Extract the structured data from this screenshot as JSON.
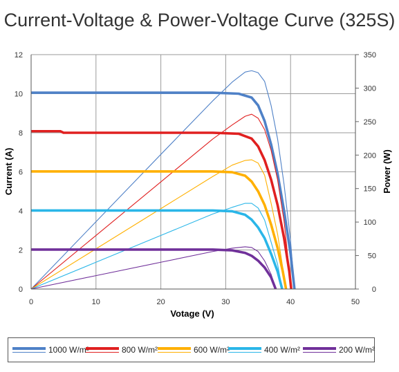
{
  "title": "Current-Voltage & Power-Voltage Curve (325S)",
  "chart_data": {
    "type": "line",
    "title": "Current-Voltage & Power-Voltage Curve (325S)",
    "xlabel": "Votage (V)",
    "ylabel_left": "Current (A)",
    "ylabel_right": "Power (W)",
    "xlim": [
      0,
      50
    ],
    "ylim_left": [
      0,
      12
    ],
    "ylim_right": [
      0,
      350
    ],
    "x_ticks": [
      "0",
      "10",
      "20",
      "30",
      "40",
      "50"
    ],
    "y_left_ticks": [
      "0",
      "2",
      "4",
      "6",
      "8",
      "10",
      "12"
    ],
    "y_right_ticks": [
      "0",
      "50",
      "100",
      "150",
      "200",
      "250",
      "300",
      "350"
    ],
    "grid": true,
    "legend_position": "bottom",
    "series": [
      {
        "name": "1000 W/m²",
        "color": "#4f81c7",
        "current_points": [
          [
            0,
            10.05
          ],
          [
            28,
            10.05
          ],
          [
            32,
            10.0
          ],
          [
            34,
            9.8
          ],
          [
            35,
            9.4
          ],
          [
            36,
            8.6
          ],
          [
            37,
            7.4
          ],
          [
            38,
            5.9
          ],
          [
            39,
            4.0
          ],
          [
            40,
            1.8
          ],
          [
            40.5,
            0.3
          ],
          [
            40.6,
            0
          ]
        ],
        "power_points": [
          [
            0,
            0
          ],
          [
            10,
            100.5
          ],
          [
            20,
            201
          ],
          [
            28,
            281
          ],
          [
            31,
            309
          ],
          [
            33,
            324
          ],
          [
            34,
            326
          ],
          [
            35,
            323
          ],
          [
            36,
            310
          ],
          [
            37,
            274
          ],
          [
            38,
            224
          ],
          [
            39,
            156
          ],
          [
            40,
            72
          ],
          [
            40.6,
            0
          ]
        ]
      },
      {
        "name": "800 W/m²",
        "color": "#e02020",
        "current_points": [
          [
            0,
            8.08
          ],
          [
            4.5,
            8.08
          ],
          [
            5,
            8.0
          ],
          [
            28,
            8.0
          ],
          [
            32,
            7.95
          ],
          [
            34,
            7.7
          ],
          [
            35,
            7.3
          ],
          [
            36,
            6.6
          ],
          [
            37,
            5.6
          ],
          [
            38,
            4.3
          ],
          [
            39,
            2.6
          ],
          [
            39.8,
            0.9
          ],
          [
            40.1,
            0
          ]
        ],
        "power_points": [
          [
            0,
            0
          ],
          [
            10,
            80
          ],
          [
            20,
            160
          ],
          [
            28,
            224
          ],
          [
            31,
            245
          ],
          [
            33,
            258
          ],
          [
            34,
            261
          ],
          [
            35,
            255
          ],
          [
            36,
            238
          ],
          [
            37,
            207
          ],
          [
            38,
            163
          ],
          [
            39,
            101
          ],
          [
            40.1,
            0
          ]
        ]
      },
      {
        "name": "600 W/m²",
        "color": "#ffb000",
        "current_points": [
          [
            0,
            6.02
          ],
          [
            28,
            6.02
          ],
          [
            31,
            5.98
          ],
          [
            33,
            5.8
          ],
          [
            34,
            5.5
          ],
          [
            35,
            5.0
          ],
          [
            36,
            4.3
          ],
          [
            37,
            3.3
          ],
          [
            38,
            2.1
          ],
          [
            38.8,
            0.9
          ],
          [
            39.3,
            0
          ]
        ],
        "power_points": [
          [
            0,
            0
          ],
          [
            10,
            60
          ],
          [
            20,
            120
          ],
          [
            28,
            168
          ],
          [
            31,
            185
          ],
          [
            33,
            192
          ],
          [
            34,
            193
          ],
          [
            35,
            188
          ],
          [
            36,
            170
          ],
          [
            37,
            128
          ],
          [
            38,
            82
          ],
          [
            39.3,
            0
          ]
        ]
      },
      {
        "name": "400 W/m²",
        "color": "#2ab6e8",
        "current_points": [
          [
            0,
            4.02
          ],
          [
            28,
            4.02
          ],
          [
            31,
            3.98
          ],
          [
            33,
            3.8
          ],
          [
            34,
            3.55
          ],
          [
            35,
            3.15
          ],
          [
            36,
            2.6
          ],
          [
            37,
            1.8
          ],
          [
            38,
            0.9
          ],
          [
            38.7,
            0
          ]
        ],
        "power_points": [
          [
            0,
            0
          ],
          [
            10,
            40
          ],
          [
            20,
            80
          ],
          [
            28,
            112
          ],
          [
            31,
            122
          ],
          [
            33,
            128
          ],
          [
            34,
            128
          ],
          [
            35,
            121
          ],
          [
            36,
            103
          ],
          [
            37,
            70
          ],
          [
            38,
            37
          ],
          [
            38.7,
            0
          ]
        ]
      },
      {
        "name": "200 W/m²",
        "color": "#70309a",
        "current_points": [
          [
            0,
            2.02
          ],
          [
            28,
            2.02
          ],
          [
            31,
            1.98
          ],
          [
            33,
            1.85
          ],
          [
            34,
            1.7
          ],
          [
            35,
            1.45
          ],
          [
            36,
            1.1
          ],
          [
            37,
            0.6
          ],
          [
            37.7,
            0
          ]
        ],
        "power_points": [
          [
            0,
            0
          ],
          [
            10,
            20
          ],
          [
            20,
            40
          ],
          [
            28,
            56
          ],
          [
            31,
            61
          ],
          [
            33,
            63
          ],
          [
            34,
            62
          ],
          [
            35,
            56
          ],
          [
            36,
            42
          ],
          [
            37,
            22
          ],
          [
            37.7,
            0
          ]
        ]
      }
    ]
  }
}
